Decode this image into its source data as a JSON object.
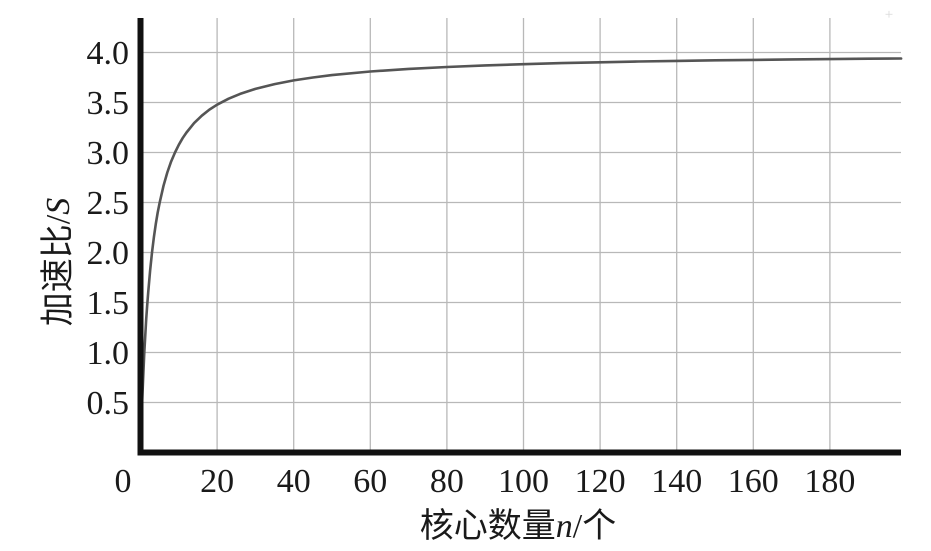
{
  "chart_data": {
    "type": "line",
    "title": "",
    "xlabel": "核心数量n/个",
    "ylabel": "加速比/S",
    "xlabel_parts": [
      {
        "text": "核心数量",
        "style": "normal"
      },
      {
        "text": "n",
        "style": "italic"
      },
      {
        "text": "/个",
        "style": "normal"
      }
    ],
    "ylabel_parts": [
      {
        "text": "加速比/",
        "style": "normal"
      },
      {
        "text": "S",
        "style": "italic"
      }
    ],
    "x_ticks": [
      0,
      20,
      40,
      60,
      80,
      100,
      120,
      140,
      160,
      180
    ],
    "y_ticks": [
      "0.5",
      "1.0",
      "1.5",
      "2.0",
      "2.5",
      "3.0",
      "3.5",
      "4.0"
    ],
    "xlim": [
      0,
      198.6
    ],
    "ylim": [
      0,
      4.34
    ],
    "grid": true,
    "legend_position": "none",
    "series": [
      {
        "name": "speedup-curve",
        "description": "Speedup S versus core count n, Amdahl-type curve S = 4n/(n+3), asymptote 4.0",
        "points": [
          [
            0.02,
            0.026
          ],
          [
            0.05,
            0.066
          ],
          [
            0.1,
            0.129
          ],
          [
            0.2,
            0.25
          ],
          [
            0.3,
            0.364
          ],
          [
            0.5,
            0.571
          ],
          [
            0.75,
            0.8
          ],
          [
            1,
            1.0
          ],
          [
            1.25,
            1.176
          ],
          [
            1.5,
            1.333
          ],
          [
            1.75,
            1.474
          ],
          [
            2,
            1.6
          ],
          [
            2.5,
            1.818
          ],
          [
            3,
            2.0
          ],
          [
            3.5,
            2.154
          ],
          [
            4,
            2.286
          ],
          [
            4.5,
            2.4
          ],
          [
            5,
            2.5
          ],
          [
            6,
            2.667
          ],
          [
            7,
            2.8
          ],
          [
            8,
            2.909
          ],
          [
            9,
            3.0
          ],
          [
            10,
            3.077
          ],
          [
            11,
            3.143
          ],
          [
            12,
            3.2
          ],
          [
            14,
            3.294
          ],
          [
            16,
            3.368
          ],
          [
            18,
            3.429
          ],
          [
            20,
            3.478
          ],
          [
            23,
            3.538
          ],
          [
            26,
            3.586
          ],
          [
            30,
            3.636
          ],
          [
            35,
            3.684
          ],
          [
            40,
            3.721
          ],
          [
            45,
            3.75
          ],
          [
            50,
            3.774
          ],
          [
            60,
            3.81
          ],
          [
            70,
            3.836
          ],
          [
            80,
            3.855
          ],
          [
            90,
            3.871
          ],
          [
            100,
            3.883
          ],
          [
            110,
            3.894
          ],
          [
            120,
            3.902
          ],
          [
            130,
            3.91
          ],
          [
            140,
            3.916
          ],
          [
            150,
            3.922
          ],
          [
            160,
            3.926
          ],
          [
            170,
            3.931
          ],
          [
            180,
            3.934
          ],
          [
            190,
            3.938
          ],
          [
            198.6,
            3.94
          ]
        ]
      }
    ],
    "colors": {
      "curve": "#555555",
      "grid": "#b8b8b8",
      "axis": "#111111",
      "text": "#1a1a1a",
      "background": "#ffffff",
      "artifact": "#d9d9d9"
    },
    "artifact_mark": "+"
  }
}
